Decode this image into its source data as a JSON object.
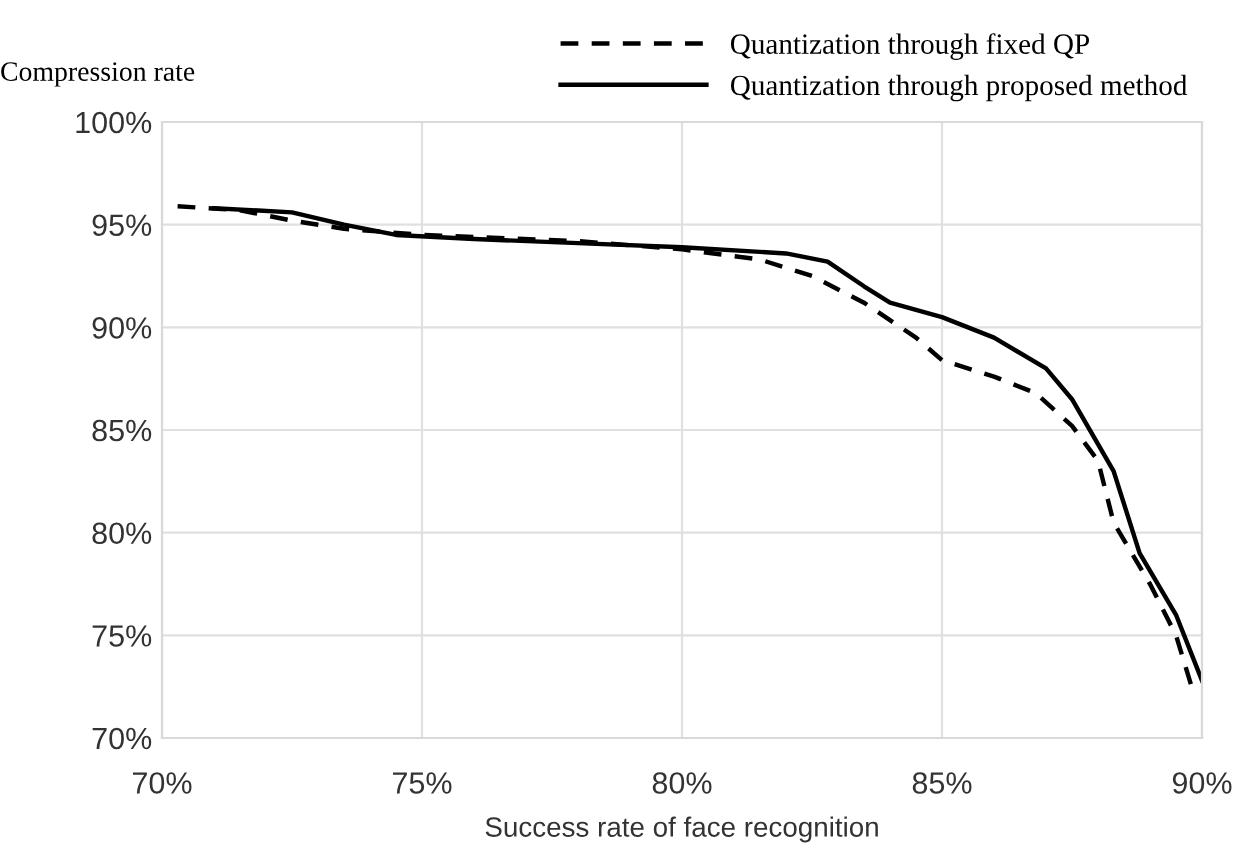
{
  "chart_data": {
    "type": "line",
    "xlabel": "Success rate of face recognition",
    "ylabel": "Compression rate",
    "xlim": [
      70,
      90
    ],
    "xticks": [
      {
        "value": 70,
        "label": "70%"
      },
      {
        "value": 75,
        "label": "75%"
      },
      {
        "value": 80,
        "label": "80%"
      },
      {
        "value": 85,
        "label": "85%"
      },
      {
        "value": 90,
        "label": "90%"
      }
    ],
    "ylim": [
      70,
      100
    ],
    "yticks": [
      {
        "value": 70,
        "label": "70%"
      },
      {
        "value": 75,
        "label": "75%"
      },
      {
        "value": 80,
        "label": "80%"
      },
      {
        "value": 85,
        "label": "85%"
      },
      {
        "value": 90,
        "label": "90%"
      },
      {
        "value": 95,
        "label": "95%"
      },
      {
        "value": 100,
        "label": "100%"
      }
    ],
    "grid": true,
    "legend": "top",
    "marker": "none",
    "series": [
      {
        "name": "Quantization through fixed QP",
        "color": "#000000",
        "line_style": "dashed",
        "x": [
          70.3,
          71.5,
          72.5,
          73.5,
          75,
          78,
          80,
          81.5,
          82.5,
          83.5,
          84.5,
          85,
          86,
          86.8,
          87.5,
          88,
          88.3,
          89,
          89.5,
          89.8
        ],
        "values": [
          95.9,
          95.7,
          95.2,
          94.8,
          94.5,
          94.2,
          93.8,
          93.3,
          92.5,
          91.2,
          89.5,
          88.4,
          87.6,
          86.8,
          85.2,
          83.5,
          80.5,
          77.5,
          75,
          72.5
        ]
      },
      {
        "name": "Quantization through proposed method",
        "color": "#000000",
        "line_style": "solid",
        "x": [
          71,
          72.5,
          73.5,
          74.5,
          76,
          78,
          80,
          82,
          82.8,
          83.5,
          84,
          85,
          86,
          87,
          87.5,
          88.3,
          88.8,
          89.5,
          90
        ],
        "values": [
          95.8,
          95.6,
          95,
          94.5,
          94.3,
          94.1,
          93.9,
          93.6,
          93.2,
          92,
          91.2,
          90.5,
          89.5,
          88,
          86.5,
          83,
          79,
          76,
          72.8
        ]
      }
    ]
  }
}
